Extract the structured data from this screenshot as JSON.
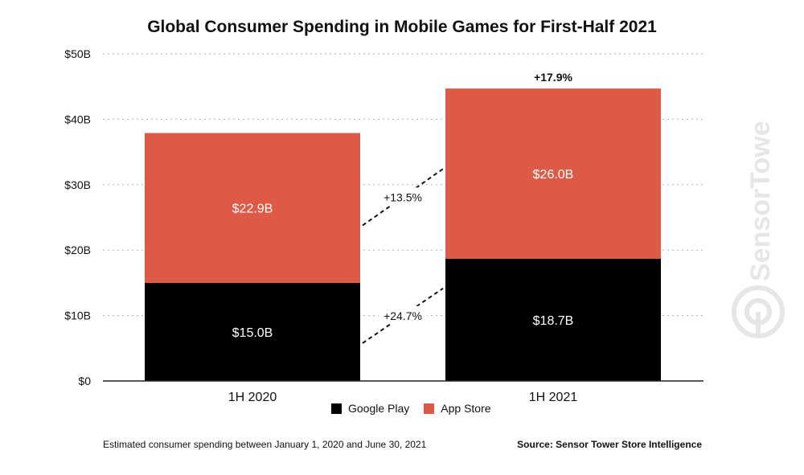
{
  "chart_data": {
    "type": "bar",
    "stacked": true,
    "title": "Global Consumer Spending in Mobile Games for First-Half 2021",
    "categories": [
      "1H 2020",
      "1H 2021"
    ],
    "series": [
      {
        "name": "Google Play",
        "values": [
          15.0,
          18.7
        ],
        "labels": [
          "$15.0B",
          "$18.7B"
        ],
        "color": "#000000"
      },
      {
        "name": "App Store",
        "values": [
          22.9,
          26.0
        ],
        "labels": [
          "$22.9B",
          "$26.0B"
        ],
        "color": "#dd5a47"
      }
    ],
    "yticks": [
      "$0",
      "$10B",
      "$20B",
      "$30B",
      "$40B",
      "$50B"
    ],
    "ylim": [
      0,
      50
    ],
    "grid": true,
    "annotations": {
      "total_growth": "+17.9%",
      "app_store_growth": "+13.5%",
      "google_play_growth": "+24.7%"
    },
    "legend_position": "bottom"
  },
  "footer": {
    "note": "Estimated consumer spending between January 1, 2020 and June 30, 2021",
    "source": "Source: Sensor Tower Store Intelligence"
  },
  "watermark": {
    "text": "SensorTower",
    "icon": "sensor-tower-logo-icon"
  }
}
